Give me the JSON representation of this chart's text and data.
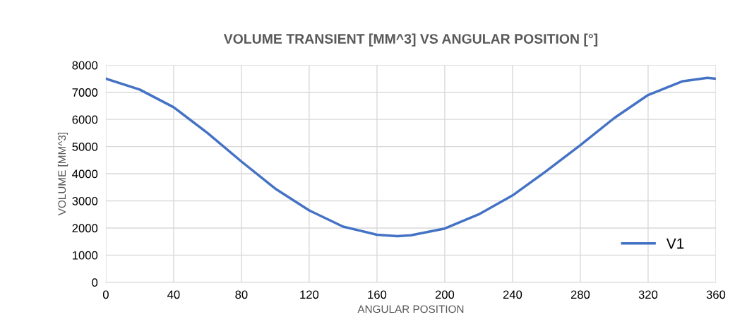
{
  "chart_data": {
    "type": "line",
    "title": "VOLUME TRANSIENT [MM^3] VS ANGULAR POSITION [°]",
    "xlabel": "ANGULAR POSITION",
    "ylabel": "VOLUME [MM^3]",
    "x": [
      0,
      20,
      40,
      60,
      80,
      100,
      120,
      140,
      160,
      172,
      180,
      200,
      220,
      240,
      260,
      280,
      300,
      320,
      340,
      355,
      360
    ],
    "series": [
      {
        "name": "V1",
        "color": "#4472c4",
        "values": [
          7500,
          7100,
          6450,
          5500,
          4450,
          3450,
          2650,
          2050,
          1750,
          1700,
          1730,
          1980,
          2500,
          3200,
          4100,
          5050,
          6050,
          6900,
          7400,
          7530,
          7500
        ]
      }
    ],
    "xlim": [
      0,
      360
    ],
    "xticks": [
      0,
      40,
      80,
      120,
      160,
      200,
      240,
      280,
      320,
      360
    ],
    "ylim": [
      0,
      8000
    ],
    "yticks": [
      0,
      1000,
      2000,
      3000,
      4000,
      5000,
      6000,
      7000,
      8000
    ],
    "grid": true,
    "legend": "right",
    "marker": "none",
    "line_style": "solid"
  }
}
